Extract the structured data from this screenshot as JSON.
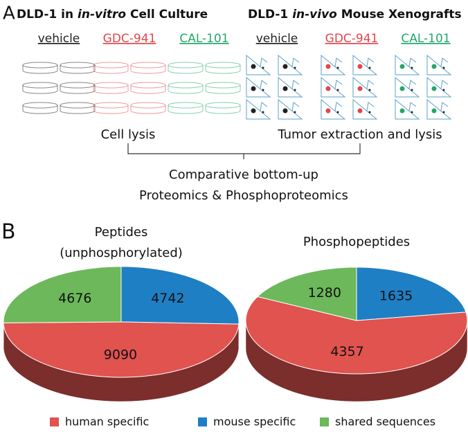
{
  "panel_a": {
    "label": "A",
    "heading_left": [
      "DLD-1 in ",
      "in-vitro",
      " Cell Culture"
    ],
    "heading_right": [
      "DLD-1 ",
      "in-vivo",
      " Mouse Xenografts"
    ],
    "groups": [
      {
        "name": "vehicle",
        "color": "#222222"
      },
      {
        "name": "GDC-941",
        "color": "#e0474c"
      },
      {
        "name": "CAL-101",
        "color": "#22a86a"
      },
      {
        "name": "vehicle",
        "color": "#222222"
      },
      {
        "name": "GDC-941",
        "color": "#e0474c"
      },
      {
        "name": "CAL-101",
        "color": "#22a86a"
      }
    ],
    "step_left": "Cell lysis",
    "step_right": "Tumor extraction and lysis",
    "analysis": [
      "Comparative bottom-up",
      "Proteomics & Phosphoproteomics"
    ]
  },
  "panel_b_label": "B",
  "legend": {
    "labels": [
      "human specific",
      "mouse specific",
      "shared sequences"
    ],
    "colors": [
      "#e0534f",
      "#1f7fc4",
      "#6cb85a"
    ]
  },
  "chart_data": [
    {
      "type": "pie",
      "title": "Peptides",
      "subtitle": "(unphosphorylated)",
      "values": [
        9090,
        4742,
        4676
      ]
    },
    {
      "type": "pie",
      "title": "Phosphopeptides",
      "values": [
        4357,
        1635,
        1280
      ]
    }
  ]
}
